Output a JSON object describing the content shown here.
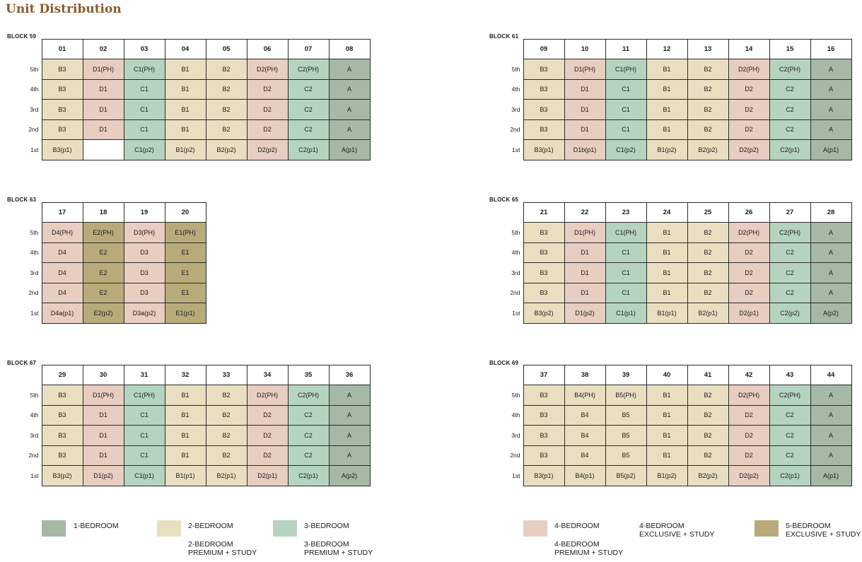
{
  "title": "Unit Distribution",
  "floor_labels": [
    "5th",
    "4th",
    "3rd",
    "2nd",
    "1st"
  ],
  "colors": {
    "1-bedroom": "#a5b9a6",
    "2-bedroom": "#e9dfc0",
    "3-bedroom": "#b5d4c0",
    "4-bedroom": "#e8cdc1",
    "5-bedroom": "#b9ab79"
  },
  "blocks": [
    {
      "name": "BLOCK 59",
      "columns": [
        "01",
        "02",
        "03",
        "04",
        "05",
        "06",
        "07",
        "08"
      ],
      "rows": [
        [
          {
            "v": "B3",
            "t": "t2"
          },
          {
            "v": "D1(PH)",
            "t": "t4"
          },
          {
            "v": "C1(PH)",
            "t": "t3"
          },
          {
            "v": "B1",
            "t": "t2"
          },
          {
            "v": "B2",
            "t": "t2"
          },
          {
            "v": "D2(PH)",
            "t": "t4"
          },
          {
            "v": "C2(PH)",
            "t": "t3"
          },
          {
            "v": "A",
            "t": "t1"
          }
        ],
        [
          {
            "v": "B3",
            "t": "t2"
          },
          {
            "v": "D1",
            "t": "t4"
          },
          {
            "v": "C1",
            "t": "t3"
          },
          {
            "v": "B1",
            "t": "t2"
          },
          {
            "v": "B2",
            "t": "t2"
          },
          {
            "v": "D2",
            "t": "t4"
          },
          {
            "v": "C2",
            "t": "t3"
          },
          {
            "v": "A",
            "t": "t1"
          }
        ],
        [
          {
            "v": "B3",
            "t": "t2"
          },
          {
            "v": "D1",
            "t": "t4"
          },
          {
            "v": "C1",
            "t": "t3"
          },
          {
            "v": "B1",
            "t": "t2"
          },
          {
            "v": "B2",
            "t": "t2"
          },
          {
            "v": "D2",
            "t": "t4"
          },
          {
            "v": "C2",
            "t": "t3"
          },
          {
            "v": "A",
            "t": "t1"
          }
        ],
        [
          {
            "v": "B3",
            "t": "t2"
          },
          {
            "v": "D1",
            "t": "t4"
          },
          {
            "v": "C1",
            "t": "t3"
          },
          {
            "v": "B1",
            "t": "t2"
          },
          {
            "v": "B2",
            "t": "t2"
          },
          {
            "v": "D2",
            "t": "t4"
          },
          {
            "v": "C2",
            "t": "t3"
          },
          {
            "v": "A",
            "t": "t1"
          }
        ],
        [
          {
            "v": "B3(p1)",
            "t": "t2"
          },
          {
            "v": "",
            "t": "tx"
          },
          {
            "v": "C1(p2)",
            "t": "t3"
          },
          {
            "v": "B1(p2)",
            "t": "t2"
          },
          {
            "v": "B2(p2)",
            "t": "t2"
          },
          {
            "v": "D2(p2)",
            "t": "t4"
          },
          {
            "v": "C2(p1)",
            "t": "t3"
          },
          {
            "v": "A(p1)",
            "t": "t1"
          }
        ]
      ]
    },
    {
      "name": "BLOCK 61",
      "columns": [
        "09",
        "10",
        "11",
        "12",
        "13",
        "14",
        "15",
        "16"
      ],
      "rows": [
        [
          {
            "v": "B3",
            "t": "t2"
          },
          {
            "v": "D1(PH)",
            "t": "t4"
          },
          {
            "v": "C1(PH)",
            "t": "t3"
          },
          {
            "v": "B1",
            "t": "t2"
          },
          {
            "v": "B2",
            "t": "t2"
          },
          {
            "v": "D2(PH)",
            "t": "t4"
          },
          {
            "v": "C2(PH)",
            "t": "t3"
          },
          {
            "v": "A",
            "t": "t1"
          }
        ],
        [
          {
            "v": "B3",
            "t": "t2"
          },
          {
            "v": "D1",
            "t": "t4"
          },
          {
            "v": "C1",
            "t": "t3"
          },
          {
            "v": "B1",
            "t": "t2"
          },
          {
            "v": "B2",
            "t": "t2"
          },
          {
            "v": "D2",
            "t": "t4"
          },
          {
            "v": "C2",
            "t": "t3"
          },
          {
            "v": "A",
            "t": "t1"
          }
        ],
        [
          {
            "v": "B3",
            "t": "t2"
          },
          {
            "v": "D1",
            "t": "t4"
          },
          {
            "v": "C1",
            "t": "t3"
          },
          {
            "v": "B1",
            "t": "t2"
          },
          {
            "v": "B2",
            "t": "t2"
          },
          {
            "v": "D2",
            "t": "t4"
          },
          {
            "v": "C2",
            "t": "t3"
          },
          {
            "v": "A",
            "t": "t1"
          }
        ],
        [
          {
            "v": "B3",
            "t": "t2"
          },
          {
            "v": "D1",
            "t": "t4"
          },
          {
            "v": "C1",
            "t": "t3"
          },
          {
            "v": "B1",
            "t": "t2"
          },
          {
            "v": "B2",
            "t": "t2"
          },
          {
            "v": "D2",
            "t": "t4"
          },
          {
            "v": "C2",
            "t": "t3"
          },
          {
            "v": "A",
            "t": "t1"
          }
        ],
        [
          {
            "v": "B3(p1)",
            "t": "t2"
          },
          {
            "v": "D1b(p1)",
            "t": "t4"
          },
          {
            "v": "C1(p2)",
            "t": "t3"
          },
          {
            "v": "B1(p2)",
            "t": "t2"
          },
          {
            "v": "B2(p2)",
            "t": "t2"
          },
          {
            "v": "D2(p2)",
            "t": "t4"
          },
          {
            "v": "C2(p1)",
            "t": "t3"
          },
          {
            "v": "A(p1)",
            "t": "t1"
          }
        ]
      ]
    },
    {
      "name": "BLOCK 63",
      "columns": [
        "17",
        "18",
        "19",
        "20"
      ],
      "rows": [
        [
          {
            "v": "D4(PH)",
            "t": "t4"
          },
          {
            "v": "E2(PH)",
            "t": "t5"
          },
          {
            "v": "D3(PH)",
            "t": "t4"
          },
          {
            "v": "E1(PH)",
            "t": "t5"
          }
        ],
        [
          {
            "v": "D4",
            "t": "t4"
          },
          {
            "v": "E2",
            "t": "t5"
          },
          {
            "v": "D3",
            "t": "t4"
          },
          {
            "v": "E1",
            "t": "t5"
          }
        ],
        [
          {
            "v": "D4",
            "t": "t4"
          },
          {
            "v": "E2",
            "t": "t5"
          },
          {
            "v": "D3",
            "t": "t4"
          },
          {
            "v": "E1",
            "t": "t5"
          }
        ],
        [
          {
            "v": "D4",
            "t": "t4"
          },
          {
            "v": "E2",
            "t": "t5"
          },
          {
            "v": "D3",
            "t": "t4"
          },
          {
            "v": "E1",
            "t": "t5"
          }
        ],
        [
          {
            "v": "D4a(p1)",
            "t": "t4"
          },
          {
            "v": "E2(p2)",
            "t": "t5"
          },
          {
            "v": "D3a(p2)",
            "t": "t4"
          },
          {
            "v": "E1(p1)",
            "t": "t5"
          }
        ]
      ]
    },
    {
      "name": "BLOCK 65",
      "columns": [
        "21",
        "22",
        "23",
        "24",
        "25",
        "26",
        "27",
        "28"
      ],
      "rows": [
        [
          {
            "v": "B3",
            "t": "t2"
          },
          {
            "v": "D1(PH)",
            "t": "t4"
          },
          {
            "v": "C1(PH)",
            "t": "t3"
          },
          {
            "v": "B1",
            "t": "t2"
          },
          {
            "v": "B2",
            "t": "t2"
          },
          {
            "v": "D2(PH)",
            "t": "t4"
          },
          {
            "v": "C2(PH)",
            "t": "t3"
          },
          {
            "v": "A",
            "t": "t1"
          }
        ],
        [
          {
            "v": "B3",
            "t": "t2"
          },
          {
            "v": "D1",
            "t": "t4"
          },
          {
            "v": "C1",
            "t": "t3"
          },
          {
            "v": "B1",
            "t": "t2"
          },
          {
            "v": "B2",
            "t": "t2"
          },
          {
            "v": "D2",
            "t": "t4"
          },
          {
            "v": "C2",
            "t": "t3"
          },
          {
            "v": "A",
            "t": "t1"
          }
        ],
        [
          {
            "v": "B3",
            "t": "t2"
          },
          {
            "v": "D1",
            "t": "t4"
          },
          {
            "v": "C1",
            "t": "t3"
          },
          {
            "v": "B1",
            "t": "t2"
          },
          {
            "v": "B2",
            "t": "t2"
          },
          {
            "v": "D2",
            "t": "t4"
          },
          {
            "v": "C2",
            "t": "t3"
          },
          {
            "v": "A",
            "t": "t1"
          }
        ],
        [
          {
            "v": "B3",
            "t": "t2"
          },
          {
            "v": "D1",
            "t": "t4"
          },
          {
            "v": "C1",
            "t": "t3"
          },
          {
            "v": "B1",
            "t": "t2"
          },
          {
            "v": "B2",
            "t": "t2"
          },
          {
            "v": "D2",
            "t": "t4"
          },
          {
            "v": "C2",
            "t": "t3"
          },
          {
            "v": "A",
            "t": "t1"
          }
        ],
        [
          {
            "v": "B3(p2)",
            "t": "t2"
          },
          {
            "v": "D1(p2)",
            "t": "t4"
          },
          {
            "v": "C1(p1)",
            "t": "t3"
          },
          {
            "v": "B1(p1)",
            "t": "t2"
          },
          {
            "v": "B2(p1)",
            "t": "t2"
          },
          {
            "v": "D2(p1)",
            "t": "t4"
          },
          {
            "v": "C2(p2)",
            "t": "t3"
          },
          {
            "v": "A(p2)",
            "t": "t1"
          }
        ]
      ]
    },
    {
      "name": "BLOCK 67",
      "columns": [
        "29",
        "30",
        "31",
        "32",
        "33",
        "34",
        "35",
        "36"
      ],
      "rows": [
        [
          {
            "v": "B3",
            "t": "t2"
          },
          {
            "v": "D1(PH)",
            "t": "t4"
          },
          {
            "v": "C1(PH)",
            "t": "t3"
          },
          {
            "v": "B1",
            "t": "t2"
          },
          {
            "v": "B2",
            "t": "t2"
          },
          {
            "v": "D2(PH)",
            "t": "t4"
          },
          {
            "v": "C2(PH)",
            "t": "t3"
          },
          {
            "v": "A",
            "t": "t1"
          }
        ],
        [
          {
            "v": "B3",
            "t": "t2"
          },
          {
            "v": "D1",
            "t": "t4"
          },
          {
            "v": "C1",
            "t": "t3"
          },
          {
            "v": "B1",
            "t": "t2"
          },
          {
            "v": "B2",
            "t": "t2"
          },
          {
            "v": "D2",
            "t": "t4"
          },
          {
            "v": "C2",
            "t": "t3"
          },
          {
            "v": "A",
            "t": "t1"
          }
        ],
        [
          {
            "v": "B3",
            "t": "t2"
          },
          {
            "v": "D1",
            "t": "t4"
          },
          {
            "v": "C1",
            "t": "t3"
          },
          {
            "v": "B1",
            "t": "t2"
          },
          {
            "v": "B2",
            "t": "t2"
          },
          {
            "v": "D2",
            "t": "t4"
          },
          {
            "v": "C2",
            "t": "t3"
          },
          {
            "v": "A",
            "t": "t1"
          }
        ],
        [
          {
            "v": "B3",
            "t": "t2"
          },
          {
            "v": "D1",
            "t": "t4"
          },
          {
            "v": "C1",
            "t": "t3"
          },
          {
            "v": "B1",
            "t": "t2"
          },
          {
            "v": "B2",
            "t": "t2"
          },
          {
            "v": "D2",
            "t": "t4"
          },
          {
            "v": "C2",
            "t": "t3"
          },
          {
            "v": "A",
            "t": "t1"
          }
        ],
        [
          {
            "v": "B3(p2)",
            "t": "t2"
          },
          {
            "v": "D1(p2)",
            "t": "t4"
          },
          {
            "v": "C1(p1)",
            "t": "t3"
          },
          {
            "v": "B1(p1)",
            "t": "t2"
          },
          {
            "v": "B2(p1)",
            "t": "t2"
          },
          {
            "v": "D2(p1)",
            "t": "t4"
          },
          {
            "v": "C2(p1)",
            "t": "t3"
          },
          {
            "v": "A(p2)",
            "t": "t1"
          }
        ]
      ]
    },
    {
      "name": "BLOCK 69",
      "columns": [
        "37",
        "38",
        "39",
        "40",
        "41",
        "42",
        "43",
        "44"
      ],
      "rows": [
        [
          {
            "v": "B3",
            "t": "t2"
          },
          {
            "v": "B4(PH)",
            "t": "t2"
          },
          {
            "v": "B5(PH)",
            "t": "t2"
          },
          {
            "v": "B1",
            "t": "t2"
          },
          {
            "v": "B2",
            "t": "t2"
          },
          {
            "v": "D2(PH)",
            "t": "t4"
          },
          {
            "v": "C2(PH)",
            "t": "t3"
          },
          {
            "v": "A",
            "t": "t1"
          }
        ],
        [
          {
            "v": "B3",
            "t": "t2"
          },
          {
            "v": "B4",
            "t": "t2"
          },
          {
            "v": "B5",
            "t": "t2"
          },
          {
            "v": "B1",
            "t": "t2"
          },
          {
            "v": "B2",
            "t": "t2"
          },
          {
            "v": "D2",
            "t": "t4"
          },
          {
            "v": "C2",
            "t": "t3"
          },
          {
            "v": "A",
            "t": "t1"
          }
        ],
        [
          {
            "v": "B3",
            "t": "t2"
          },
          {
            "v": "B4",
            "t": "t2"
          },
          {
            "v": "B5",
            "t": "t2"
          },
          {
            "v": "B1",
            "t": "t2"
          },
          {
            "v": "B2",
            "t": "t2"
          },
          {
            "v": "D2",
            "t": "t4"
          },
          {
            "v": "C2",
            "t": "t3"
          },
          {
            "v": "A",
            "t": "t1"
          }
        ],
        [
          {
            "v": "B3",
            "t": "t2"
          },
          {
            "v": "B4",
            "t": "t2"
          },
          {
            "v": "B5",
            "t": "t2"
          },
          {
            "v": "B1",
            "t": "t2"
          },
          {
            "v": "B2",
            "t": "t2"
          },
          {
            "v": "D2",
            "t": "t4"
          },
          {
            "v": "C2",
            "t": "t3"
          },
          {
            "v": "A",
            "t": "t1"
          }
        ],
        [
          {
            "v": "B3(p1)",
            "t": "t2"
          },
          {
            "v": "B4(p1)",
            "t": "t2"
          },
          {
            "v": "B5(p2)",
            "t": "t2"
          },
          {
            "v": "B1(p2)",
            "t": "t2"
          },
          {
            "v": "B2(p2)",
            "t": "t2"
          },
          {
            "v": "D2(p2)",
            "t": "t4"
          },
          {
            "v": "C2(p1)",
            "t": "t3"
          },
          {
            "v": "A(p1)",
            "t": "t1"
          }
        ]
      ]
    }
  ],
  "legend": {
    "one_bedroom": "1-BEDROOM",
    "two_bedroom": "2-BEDROOM",
    "two_bedroom_premium_line1": "2-BEDROOM",
    "two_bedroom_premium_line2": "PREMIUM + STUDY",
    "three_bedroom": "3-BEDROOM",
    "three_bedroom_premium_line1": "3-BEDROOM",
    "three_bedroom_premium_line2": "PREMIUM + STUDY",
    "four_bedroom": "4-BEDROOM",
    "four_bedroom_premium_line1": "4-BEDROOM",
    "four_bedroom_premium_line2": "PREMIUM + STUDY",
    "four_bedroom_exclusive_line1": "4-BEDROOM",
    "four_bedroom_exclusive_line2": "EXCLUSIVE + STUDY",
    "five_bedroom_line1": "5-BEDROOM",
    "five_bedroom_line2": "EXCLUSIVE + STUDY"
  }
}
